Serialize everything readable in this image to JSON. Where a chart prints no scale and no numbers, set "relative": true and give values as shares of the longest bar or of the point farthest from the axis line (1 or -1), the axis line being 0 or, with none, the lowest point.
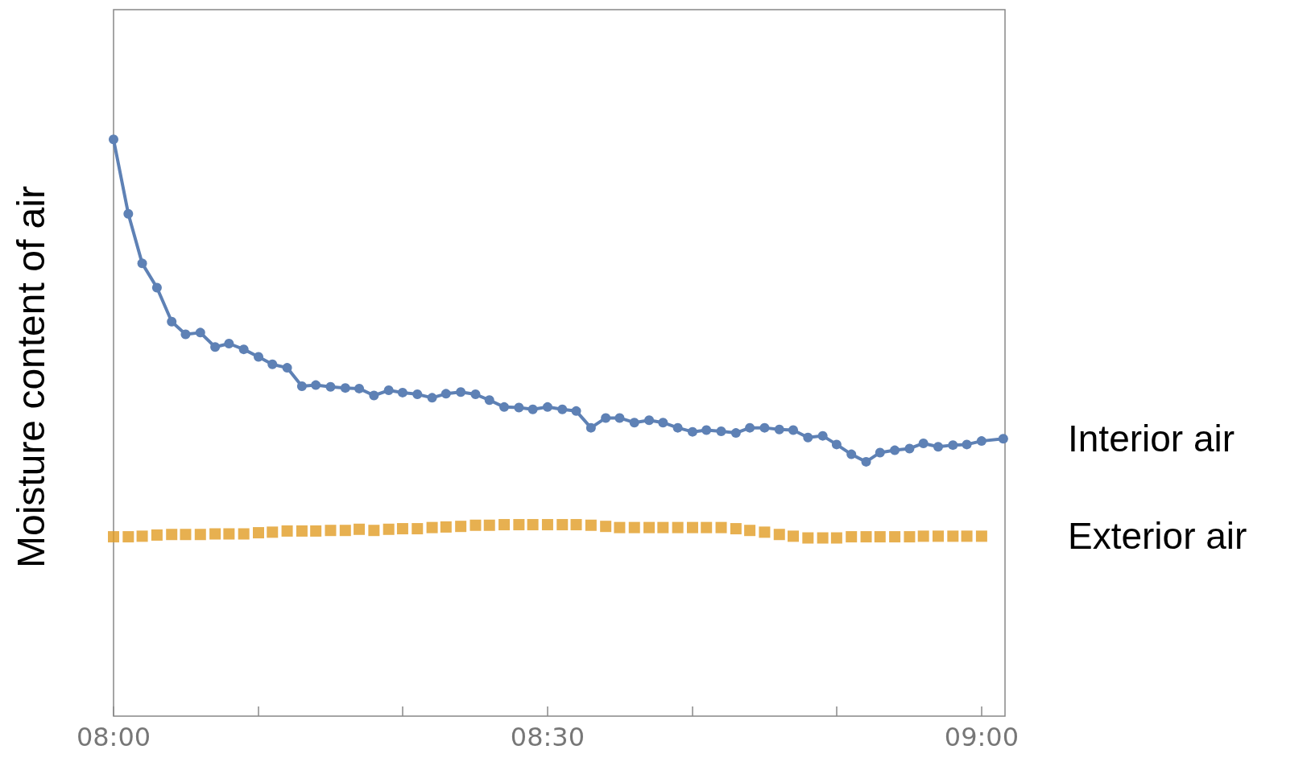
{
  "chart_data": {
    "type": "line",
    "ylabel": "Moisture content of air",
    "relative": true,
    "legend": false,
    "grid": false,
    "xlim": [
      8,
      9.027
    ],
    "xticks": [
      {
        "value": 8,
        "label": "08:00"
      },
      {
        "value": 8.167,
        "label": null
      },
      {
        "value": 8.333,
        "label": null
      },
      {
        "value": 8.5,
        "label": "08:30"
      },
      {
        "value": 8.667,
        "label": null
      },
      {
        "value": 8.833,
        "label": null
      },
      {
        "value": 9,
        "label": "09:00"
      }
    ],
    "x": [
      8,
      8.017,
      8.033,
      8.05,
      8.067,
      8.083,
      8.1,
      8.117,
      8.133,
      8.15,
      8.167,
      8.183,
      8.2,
      8.217,
      8.233,
      8.25,
      8.267,
      8.283,
      8.3,
      8.317,
      8.333,
      8.35,
      8.367,
      8.383,
      8.4,
      8.417,
      8.433,
      8.45,
      8.467,
      8.483,
      8.5,
      8.517,
      8.533,
      8.55,
      8.567,
      8.583,
      8.6,
      8.617,
      8.633,
      8.65,
      8.667,
      8.683,
      8.7,
      8.717,
      8.733,
      8.75,
      8.767,
      8.783,
      8.8,
      8.817,
      8.833,
      8.85,
      8.867,
      8.883,
      8.9,
      8.917,
      8.933,
      8.95,
      8.967,
      8.983,
      9
    ],
    "series": [
      {
        "name": "Interior air",
        "marker": "circle",
        "color": "#5e81b5",
        "x": [
          8,
          8.017,
          8.033,
          8.05,
          8.067,
          8.083,
          8.1,
          8.117,
          8.133,
          8.15,
          8.167,
          8.183,
          8.2,
          8.217,
          8.233,
          8.25,
          8.267,
          8.283,
          8.3,
          8.317,
          8.333,
          8.35,
          8.367,
          8.383,
          8.4,
          8.417,
          8.433,
          8.45,
          8.467,
          8.483,
          8.5,
          8.517,
          8.533,
          8.55,
          8.567,
          8.583,
          8.6,
          8.617,
          8.633,
          8.65,
          8.667,
          8.683,
          8.7,
          8.717,
          8.733,
          8.75,
          8.767,
          8.783,
          8.8,
          8.817,
          8.833,
          8.85,
          8.867,
          8.883,
          8.9,
          8.917,
          8.933,
          8.95,
          8.967,
          8.983,
          9,
          9.025
        ],
        "values": [
          1,
          0.871,
          0.785,
          0.743,
          0.684,
          0.662,
          0.665,
          0.64,
          0.646,
          0.636,
          0.623,
          0.61,
          0.604,
          0.572,
          0.574,
          0.571,
          0.569,
          0.568,
          0.556,
          0.565,
          0.561,
          0.558,
          0.552,
          0.559,
          0.562,
          0.558,
          0.548,
          0.536,
          0.535,
          0.532,
          0.536,
          0.532,
          0.529,
          0.5,
          0.517,
          0.517,
          0.509,
          0.513,
          0.509,
          0.5,
          0.493,
          0.496,
          0.494,
          0.491,
          0.5,
          0.5,
          0.497,
          0.496,
          0.483,
          0.486,
          0.471,
          0.454,
          0.441,
          0.457,
          0.461,
          0.464,
          0.473,
          0.467,
          0.47,
          0.471,
          0.477,
          0.481
        ]
      },
      {
        "name": "Exterior air",
        "type": "scatter",
        "marker": "square",
        "color": "#e19c24",
        "values": [
          0.311,
          0.311,
          0.312,
          0.314,
          0.315,
          0.315,
          0.315,
          0.316,
          0.316,
          0.316,
          0.318,
          0.319,
          0.321,
          0.321,
          0.321,
          0.322,
          0.322,
          0.324,
          0.322,
          0.324,
          0.325,
          0.325,
          0.327,
          0.328,
          0.329,
          0.331,
          0.331,
          0.332,
          0.332,
          0.332,
          0.332,
          0.332,
          0.332,
          0.331,
          0.329,
          0.327,
          0.327,
          0.327,
          0.327,
          0.327,
          0.327,
          0.327,
          0.327,
          0.325,
          0.322,
          0.319,
          0.315,
          0.312,
          0.309,
          0.309,
          0.309,
          0.311,
          0.311,
          0.311,
          0.311,
          0.311,
          0.312,
          0.312,
          0.312,
          0.312,
          0.312
        ]
      }
    ]
  }
}
